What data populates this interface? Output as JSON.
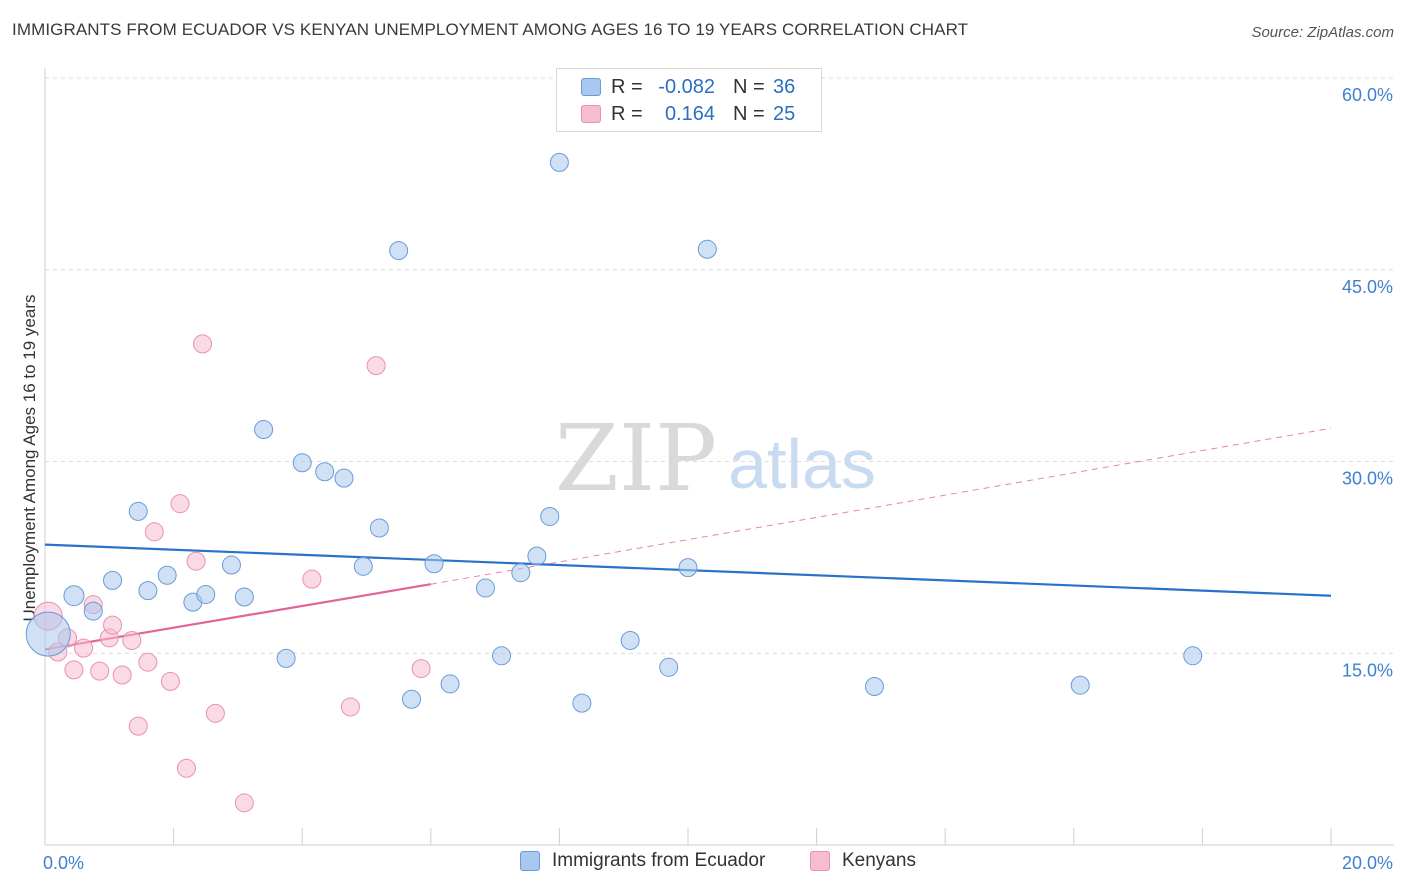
{
  "header": {
    "title": "IMMIGRANTS FROM ECUADOR VS KENYAN UNEMPLOYMENT AMONG AGES 16 TO 19 YEARS CORRELATION CHART",
    "source": "Source: ZipAtlas.com"
  },
  "watermark": {
    "zip": "ZIP",
    "atlas": "atlas"
  },
  "legend": {
    "rows": [
      {
        "r_label": "R =",
        "r_value": "-0.082",
        "n_label": "N =",
        "n_value": "36",
        "color": "#a9c8ef",
        "border": "#6a9bd8"
      },
      {
        "r_label": "R =",
        "r_value": "0.164",
        "n_label": "N =",
        "n_value": "25",
        "color": "#f6bcd0",
        "border": "#e892ae"
      }
    ]
  },
  "bottom_legend": {
    "ecuador": "Immigrants from Ecuador",
    "kenyans": "Kenyans"
  },
  "colors": {
    "ecuador_fill": "#a9c8ef",
    "ecuador_stroke": "#6a9bd8",
    "ecuador_line": "#2a72c9",
    "kenyan_fill": "#f6bcd0",
    "kenyan_stroke": "#e892ae",
    "kenyan_line": "#e2649a",
    "axis_text": "#3f7fd0",
    "grid": "#dcdcdc"
  },
  "chart_data": {
    "type": "scatter",
    "title": "IMMIGRANTS FROM ECUADOR VS KENYAN UNEMPLOYMENT AMONG AGES 16 TO 19 YEARS CORRELATION CHART",
    "xlabel": "",
    "ylabel": "Unemployment Among Ages 16 to 19 years",
    "xlim": [
      0,
      20
    ],
    "ylim": [
      0,
      60
    ],
    "x_tick_labels": [
      {
        "value": 0,
        "label": "0.0%"
      },
      {
        "value": 20,
        "label": "20.0%"
      }
    ],
    "y_tick_labels": [
      {
        "value": 15,
        "label": "15.0%"
      },
      {
        "value": 30,
        "label": "30.0%"
      },
      {
        "value": 45,
        "label": "45.0%"
      },
      {
        "value": 60,
        "label": "60.0%"
      }
    ],
    "series": [
      {
        "name": "Immigrants from Ecuador",
        "points": [
          [
            0.05,
            16.5,
            22
          ],
          [
            0.45,
            19.5,
            10
          ],
          [
            0.75,
            18.3,
            9
          ],
          [
            1.05,
            20.7,
            9
          ],
          [
            1.45,
            26.1,
            9
          ],
          [
            1.6,
            19.9,
            9
          ],
          [
            1.9,
            21.1,
            9
          ],
          [
            2.3,
            19.0,
            9
          ],
          [
            2.5,
            19.6,
            9
          ],
          [
            2.9,
            21.9,
            9
          ],
          [
            3.1,
            19.4,
            9
          ],
          [
            3.4,
            32.5,
            9
          ],
          [
            3.75,
            14.6,
            9
          ],
          [
            4.0,
            29.9,
            9
          ],
          [
            4.35,
            29.2,
            9
          ],
          [
            4.65,
            28.7,
            9
          ],
          [
            4.95,
            21.8,
            9
          ],
          [
            5.2,
            24.8,
            9
          ],
          [
            5.5,
            46.5,
            9
          ],
          [
            5.7,
            11.4,
            9
          ],
          [
            6.05,
            22.0,
            9
          ],
          [
            6.3,
            12.6,
            9
          ],
          [
            6.85,
            20.1,
            9
          ],
          [
            7.1,
            14.8,
            9
          ],
          [
            7.4,
            21.3,
            9
          ],
          [
            7.65,
            22.6,
            9
          ],
          [
            7.85,
            25.7,
            9
          ],
          [
            8.0,
            53.4,
            9
          ],
          [
            8.35,
            11.1,
            9
          ],
          [
            9.1,
            16.0,
            9
          ],
          [
            9.7,
            13.9,
            9
          ],
          [
            10.0,
            21.7,
            9
          ],
          [
            10.3,
            46.6,
            9
          ],
          [
            12.9,
            12.4,
            9
          ],
          [
            16.1,
            12.5,
            9
          ],
          [
            17.85,
            14.8,
            9
          ]
        ],
        "trendline": {
          "x": [
            0,
            20
          ],
          "y": [
            23.5,
            19.5
          ]
        }
      },
      {
        "name": "Kenyans",
        "points": [
          [
            0.05,
            17.9,
            14
          ],
          [
            0.2,
            15.1,
            9
          ],
          [
            0.35,
            16.2,
            9
          ],
          [
            0.45,
            13.7,
            9
          ],
          [
            0.6,
            15.4,
            9
          ],
          [
            0.75,
            18.8,
            9
          ],
          [
            0.85,
            13.6,
            9
          ],
          [
            1.0,
            16.2,
            9
          ],
          [
            1.05,
            17.2,
            9
          ],
          [
            1.2,
            13.3,
            9
          ],
          [
            1.35,
            16.0,
            9
          ],
          [
            1.45,
            9.3,
            9
          ],
          [
            1.6,
            14.3,
            9
          ],
          [
            1.7,
            24.5,
            9
          ],
          [
            1.95,
            12.8,
            9
          ],
          [
            2.1,
            26.7,
            9
          ],
          [
            2.2,
            6.0,
            9
          ],
          [
            2.35,
            22.2,
            9
          ],
          [
            2.45,
            39.2,
            9
          ],
          [
            2.65,
            10.3,
            9
          ],
          [
            3.1,
            3.3,
            9
          ],
          [
            4.15,
            20.8,
            9
          ],
          [
            4.75,
            10.8,
            9
          ],
          [
            5.15,
            37.5,
            9
          ],
          [
            5.85,
            13.8,
            9
          ]
        ],
        "trendline": {
          "x": [
            0,
            6.0
          ],
          "y": [
            15.3,
            20.4
          ]
        },
        "trendline_extension": {
          "x": [
            6.0,
            20
          ],
          "y": [
            20.4,
            32.6
          ]
        }
      }
    ]
  }
}
